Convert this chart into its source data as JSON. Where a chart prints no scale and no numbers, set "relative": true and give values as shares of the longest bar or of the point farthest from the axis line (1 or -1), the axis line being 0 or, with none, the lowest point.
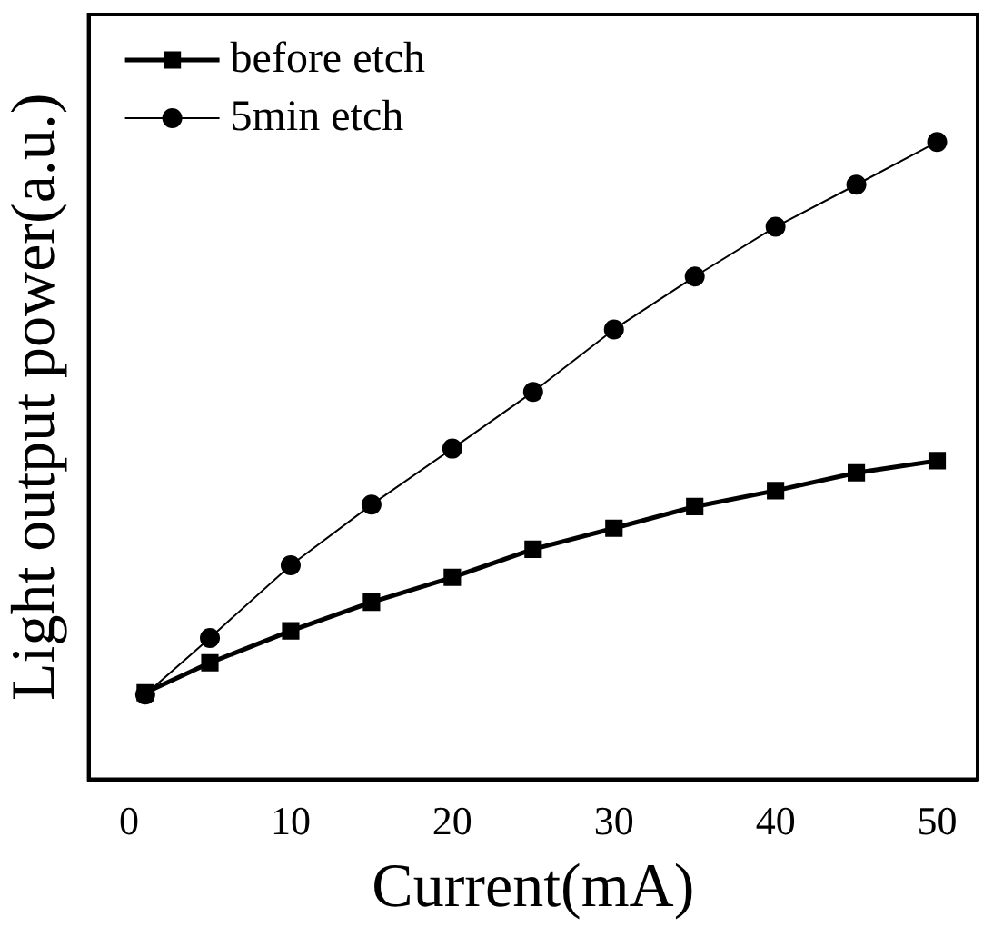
{
  "chart_data": {
    "type": "line",
    "xlabel": "Current(mA)",
    "ylabel": "Light output power(a.u.)",
    "relative": true,
    "xlim": [
      -2.5,
      52.5
    ],
    "xticks": [
      0,
      10,
      20,
      30,
      40,
      50
    ],
    "grid": false,
    "legend": "top left",
    "series": [
      {
        "name": "before etch",
        "color": "#000000",
        "marker": "square",
        "x": [
          1,
          5,
          10,
          15,
          20,
          25,
          30,
          35,
          40,
          45,
          50
        ],
        "values": [
          0.136,
          0.183,
          0.233,
          0.278,
          0.317,
          0.361,
          0.394,
          0.428,
          0.453,
          0.481,
          0.5
        ]
      },
      {
        "name": "5min etch",
        "color": "#000000",
        "marker": "circle",
        "x": [
          1,
          5,
          10,
          15,
          20,
          25,
          30,
          35,
          40,
          45,
          50
        ],
        "values": [
          0.133,
          0.222,
          0.336,
          0.431,
          0.519,
          0.608,
          0.706,
          0.789,
          0.867,
          0.933,
          1
        ]
      }
    ]
  }
}
